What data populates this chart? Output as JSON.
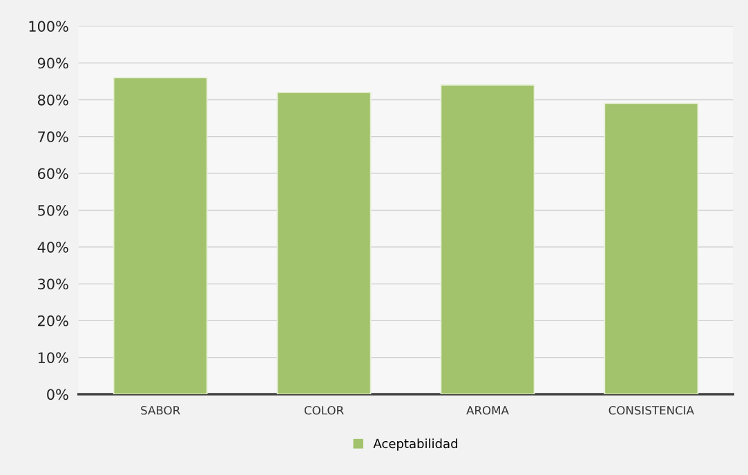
{
  "chart_data": {
    "type": "bar",
    "categories": [
      "SABOR",
      "COLOR",
      "AROMA",
      "CONSISTENCIA"
    ],
    "series": [
      {
        "name": "Aceptabilidad",
        "color": "#a2c26b",
        "values": [
          86,
          82,
          84,
          79
        ]
      }
    ],
    "ylim": [
      0,
      100
    ],
    "yticks": [
      {
        "value": 0,
        "label": "0%"
      },
      {
        "value": 10,
        "label": "10%"
      },
      {
        "value": 20,
        "label": "20%"
      },
      {
        "value": 30,
        "label": "30%"
      },
      {
        "value": 40,
        "label": "40%"
      },
      {
        "value": 50,
        "label": "50%"
      },
      {
        "value": 60,
        "label": "60%"
      },
      {
        "value": 70,
        "label": "70%"
      },
      {
        "value": 80,
        "label": "80%"
      },
      {
        "value": 90,
        "label": "90%"
      },
      {
        "value": 100,
        "label": "100%"
      }
    ],
    "grid": "y",
    "legend": "bottom"
  }
}
